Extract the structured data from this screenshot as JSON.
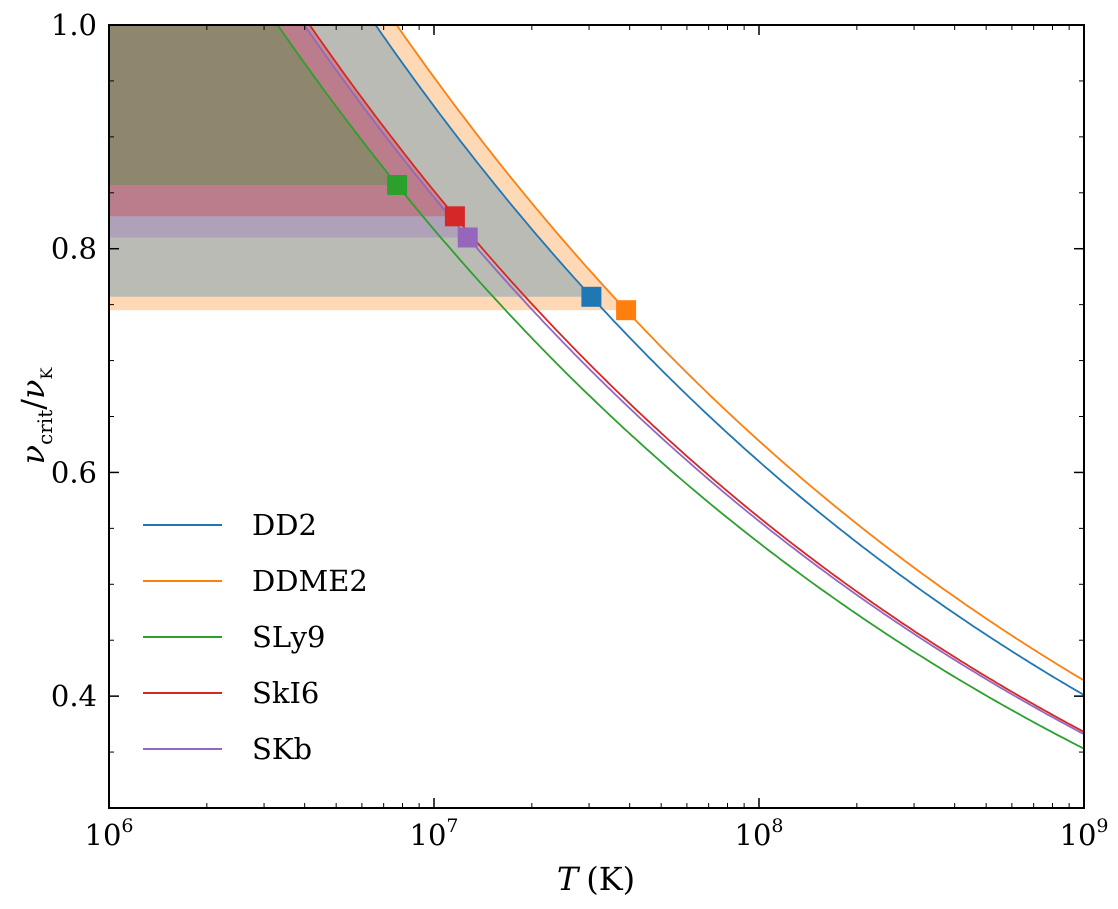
{
  "chart_data": {
    "type": "line",
    "xlabel": {
      "symbol": "T",
      "unit": "(K)"
    },
    "ylabel": {
      "symbol": "ν",
      "sub1": "crit",
      "slash": "/",
      "symbol2": "ν",
      "sub2": "K"
    },
    "xscale": "log",
    "xlim": [
      1000000,
      1000000000
    ],
    "ylim": [
      0.3,
      1.0
    ],
    "x_ticks": [
      {
        "value": 1000000,
        "base": "10",
        "exp": "6"
      },
      {
        "value": 10000000,
        "base": "10",
        "exp": "7"
      },
      {
        "value": 100000000,
        "base": "10",
        "exp": "8"
      },
      {
        "value": 1000000000,
        "base": "10",
        "exp": "9"
      }
    ],
    "y_ticks": [
      {
        "value": 0.4,
        "label": "0.4"
      },
      {
        "value": 0.6,
        "label": "0.6"
      },
      {
        "value": 0.8,
        "label": "0.8"
      },
      {
        "value": 1.0,
        "label": "1.0"
      }
    ],
    "grid": false,
    "legend_position": "lower-left",
    "series": [
      {
        "name": "DD2",
        "color": "#1f77b4",
        "marker": {
          "x": 30500000,
          "y": 0.757
        },
        "end": {
          "x": 1000000000,
          "y": 0.401
        }
      },
      {
        "name": "DDME2",
        "color": "#ff7f0e",
        "marker": {
          "x": 39000000,
          "y": 0.745
        },
        "end": {
          "x": 1000000000,
          "y": 0.414
        }
      },
      {
        "name": "SLy9",
        "color": "#2ca02c",
        "marker": {
          "x": 7700000,
          "y": 0.857
        },
        "end": {
          "x": 1000000000,
          "y": 0.353
        }
      },
      {
        "name": "SkI6",
        "color": "#d62728",
        "marker": {
          "x": 11600000,
          "y": 0.829
        },
        "end": {
          "x": 1000000000,
          "y": 0.368
        }
      },
      {
        "name": "SKb",
        "color": "#9467bd",
        "marker": {
          "x": 12700000,
          "y": 0.81
        },
        "end": {
          "x": 1000000000,
          "y": 0.366
        }
      }
    ]
  }
}
